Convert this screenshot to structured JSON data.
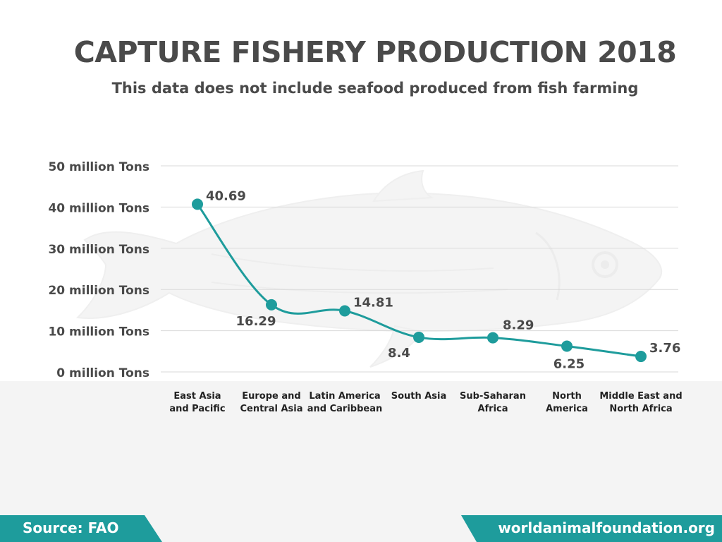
{
  "title": "CAPTURE FISHERY PRODUCTION 2018",
  "subtitle": "This data does not include seafood produced from fish farming",
  "footer": {
    "source": "Source: FAO",
    "website": "worldanimalfoundation.org"
  },
  "colors": {
    "line": "#1e9c9c",
    "text": "#4a4a4a",
    "grid": "#d9d9d9",
    "footer_bg": "#1e9c9c",
    "watermark_fish": "#e6e6e6"
  },
  "icons": {
    "background_illustration": "fish-silhouette"
  },
  "chart_data": {
    "type": "line",
    "smooth": true,
    "grid": true,
    "ylim": [
      0,
      50
    ],
    "yticks": [
      0,
      10,
      20,
      30,
      40,
      50
    ],
    "ytick_labels": [
      "0 million Tons",
      "10 million Tons",
      "20 million Tons",
      "30 million Tons",
      "40 million Tons",
      "50 million Tons"
    ],
    "categories": [
      [
        "East Asia",
        "and Pacific"
      ],
      [
        "Europe and",
        "Central Asia"
      ],
      [
        "Latin America",
        "and Caribbean"
      ],
      [
        "South Asia"
      ],
      [
        "Sub-Saharan",
        "Africa"
      ],
      [
        "North",
        "America"
      ],
      [
        "Middle East and",
        "North Africa"
      ]
    ],
    "values": [
      40.69,
      16.29,
      14.81,
      8.4,
      8.29,
      6.25,
      3.76
    ],
    "data_labels": [
      "40.69",
      "16.29",
      "14.81",
      "8.4",
      "8.29",
      "6.25",
      "3.76"
    ],
    "label_positions": [
      "right",
      "below",
      "right",
      "below",
      "above",
      "below",
      "right"
    ]
  }
}
